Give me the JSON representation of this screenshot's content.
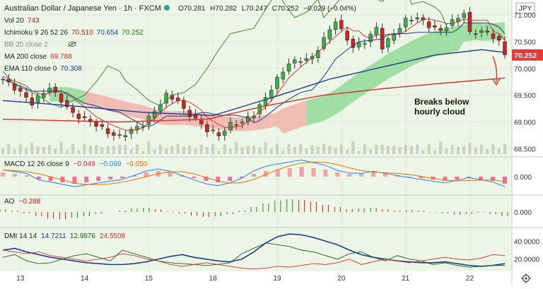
{
  "chart_data": {
    "type": "line",
    "header": {
      "title": "Australian Dollar / Japanese Yen · 1h · FXCM",
      "ohlc": {
        "o_label": "O",
        "o": "70.281",
        "h_label": "H",
        "h": "70.282",
        "l_label": "L",
        "l": "70.247",
        "c_label": "C",
        "c": "70.252",
        "change": "−0.029 (−0.04%)"
      },
      "currency_badge": "JPY"
    },
    "indicators": [
      {
        "label": "Vol 20",
        "values": [
          "743"
        ],
        "colors": [
          "#b71c1c"
        ]
      },
      {
        "label": "Ichimoku 9 26 52 26",
        "values": [
          "70.510",
          "70.654",
          "70.252"
        ],
        "colors": [
          "#b71c1c",
          "#1e3a8a",
          "#1b7a1b"
        ]
      },
      {
        "label": "BB 20 close 2",
        "values": [],
        "colors": [],
        "hidden": true
      },
      {
        "label": "MA 200 close",
        "values": [
          "69.788"
        ],
        "colors": [
          "#d32f2f"
        ]
      },
      {
        "label": "EMA 110 close 0",
        "values": [
          "70.308"
        ],
        "colors": [
          "#1e3a8a"
        ]
      }
    ],
    "price_axis": {
      "ticks": [
        "71.000",
        "70.500",
        "70.000",
        "69.500",
        "69.000",
        "68.500"
      ],
      "last_price": "70.252",
      "range": [
        68.4,
        71.2
      ]
    },
    "x_ticks": [
      "13",
      "14",
      "15",
      "18",
      "19",
      "20",
      "21",
      "22"
    ],
    "annotation": {
      "line1": "Breaks below",
      "line2": "hourly cloud"
    },
    "price_series": [
      [
        0,
        69.8
      ],
      [
        3,
        69.55
      ],
      [
        5,
        69.35
      ],
      [
        6,
        69.45
      ],
      [
        8,
        69.65
      ],
      [
        10,
        69.4
      ],
      [
        12,
        69.15
      ],
      [
        14,
        69.05
      ],
      [
        16,
        68.95
      ],
      [
        18,
        68.8
      ],
      [
        20,
        68.72
      ],
      [
        22,
        68.85
      ],
      [
        24,
        68.95
      ],
      [
        26,
        69.2
      ],
      [
        28,
        69.5
      ],
      [
        30,
        69.4
      ],
      [
        31,
        69.22
      ],
      [
        33,
        69.05
      ],
      [
        35,
        68.85
      ],
      [
        37,
        68.75
      ],
      [
        39,
        68.95
      ],
      [
        41,
        69.0
      ],
      [
        43,
        69.15
      ],
      [
        45,
        69.45
      ],
      [
        47,
        69.8
      ],
      [
        49,
        70.1
      ],
      [
        51,
        70.15
      ],
      [
        53,
        70.2
      ],
      [
        55,
        70.55
      ],
      [
        57,
        70.9
      ],
      [
        58,
        70.7
      ],
      [
        60,
        70.4
      ],
      [
        62,
        70.5
      ],
      [
        64,
        70.75
      ],
      [
        65,
        70.4
      ],
      [
        67,
        70.65
      ],
      [
        69,
        70.9
      ],
      [
        71,
        70.95
      ],
      [
        73,
        70.8
      ],
      [
        75,
        70.7
      ],
      [
        76,
        70.8
      ],
      [
        78,
        70.95
      ],
      [
        79,
        71.05
      ],
      [
        80,
        70.65
      ],
      [
        82,
        70.7
      ],
      [
        84,
        70.6
      ],
      [
        85,
        70.5
      ],
      [
        86,
        70.25
      ]
    ],
    "ma200_series": [
      [
        0,
        69.05
      ],
      [
        20,
        69.0
      ],
      [
        35,
        69.05
      ],
      [
        45,
        69.3
      ],
      [
        55,
        69.5
      ],
      [
        65,
        69.62
      ],
      [
        75,
        69.72
      ],
      [
        86,
        69.82
      ]
    ],
    "ema110_series": [
      [
        0,
        69.4
      ],
      [
        12,
        69.3
      ],
      [
        24,
        69.18
      ],
      [
        36,
        69.12
      ],
      [
        46,
        69.45
      ],
      [
        56,
        69.8
      ],
      [
        66,
        70.05
      ],
      [
        74,
        70.25
      ],
      [
        82,
        70.35
      ],
      [
        86,
        70.3
      ]
    ],
    "macd": {
      "label": "MACD 12 26 close 9",
      "values": [
        "−0.049",
        "−0.099",
        "−0.050"
      ],
      "value_colors": [
        "#d81b60",
        "#1e88e5",
        "#ef6c00"
      ],
      "ticks": [
        "0.000"
      ],
      "histogram": [
        0.03,
        0.02,
        0.01,
        -0.02,
        -0.03,
        -0.04,
        -0.05,
        -0.04,
        -0.03,
        -0.02,
        -0.01,
        0.01,
        0.03,
        0.04,
        0.03,
        0.01,
        -0.01,
        -0.03,
        -0.04,
        -0.03,
        -0.01,
        0.02,
        0.04,
        0.05,
        0.06,
        0.07,
        0.06,
        0.05,
        0.03,
        0.02,
        0.02,
        0.03,
        0.02,
        0.01,
        0.0,
        -0.01,
        -0.02,
        -0.03,
        -0.02,
        -0.01,
        -0.02,
        -0.03,
        -0.05
      ],
      "range": [
        -0.12,
        0.12
      ]
    },
    "ao": {
      "label": "AO",
      "values": [
        "−0.288"
      ],
      "value_colors": [
        "#b71c1c"
      ],
      "ticks": [
        "0.000"
      ],
      "histogram": [
        0.2,
        0.1,
        -0.1,
        -0.3,
        -0.45,
        -0.5,
        -0.4,
        -0.3,
        -0.15,
        0.0,
        0.1,
        0.25,
        0.3,
        0.2,
        0.05,
        -0.1,
        -0.25,
        -0.35,
        -0.3,
        -0.15,
        0.1,
        0.35,
        0.6,
        0.8,
        0.9,
        0.85,
        0.7,
        0.5,
        0.35,
        0.2,
        0.25,
        0.3,
        0.2,
        0.1,
        0.15,
        0.1,
        -0.05,
        -0.1,
        -0.2,
        -0.15,
        -0.05,
        -0.15,
        -0.29
      ],
      "range": [
        -1.0,
        1.0
      ]
    },
    "dmi": {
      "label": "DMI 14 14",
      "values": [
        "14.7211",
        "12.9876",
        "24.5508"
      ],
      "value_colors": [
        "#1e3a8a",
        "#1b5e20",
        "#d32f2f"
      ],
      "ticks": [
        "40.0000",
        "20.0000"
      ],
      "adx": [
        30,
        32,
        28,
        25,
        22,
        20,
        18,
        16,
        15,
        14,
        14,
        15,
        17,
        20,
        23,
        25,
        22,
        20,
        18,
        17,
        20,
        28,
        38,
        45,
        48,
        47,
        44,
        40,
        36,
        30,
        25,
        22,
        20,
        18,
        17,
        16,
        16,
        17,
        15,
        13,
        12,
        13,
        15
      ],
      "plus_di": [
        22,
        25,
        18,
        15,
        16,
        20,
        24,
        26,
        22,
        18,
        30,
        26,
        22,
        18,
        16,
        15,
        14,
        13,
        14,
        16,
        26,
        32,
        38,
        36,
        34,
        30,
        28,
        24,
        20,
        26,
        28,
        22,
        18,
        24,
        20,
        18,
        14,
        16,
        13,
        11,
        12,
        13,
        13
      ],
      "minus_di": [
        30,
        28,
        26,
        28,
        24,
        22,
        20,
        18,
        20,
        22,
        26,
        24,
        20,
        18,
        14,
        12,
        14,
        16,
        14,
        12,
        10,
        9,
        10,
        12,
        11,
        13,
        15,
        14,
        16,
        20,
        14,
        17,
        20,
        18,
        16,
        18,
        20,
        22,
        20,
        19,
        21,
        25,
        24
      ],
      "range": [
        8,
        52
      ]
    }
  }
}
